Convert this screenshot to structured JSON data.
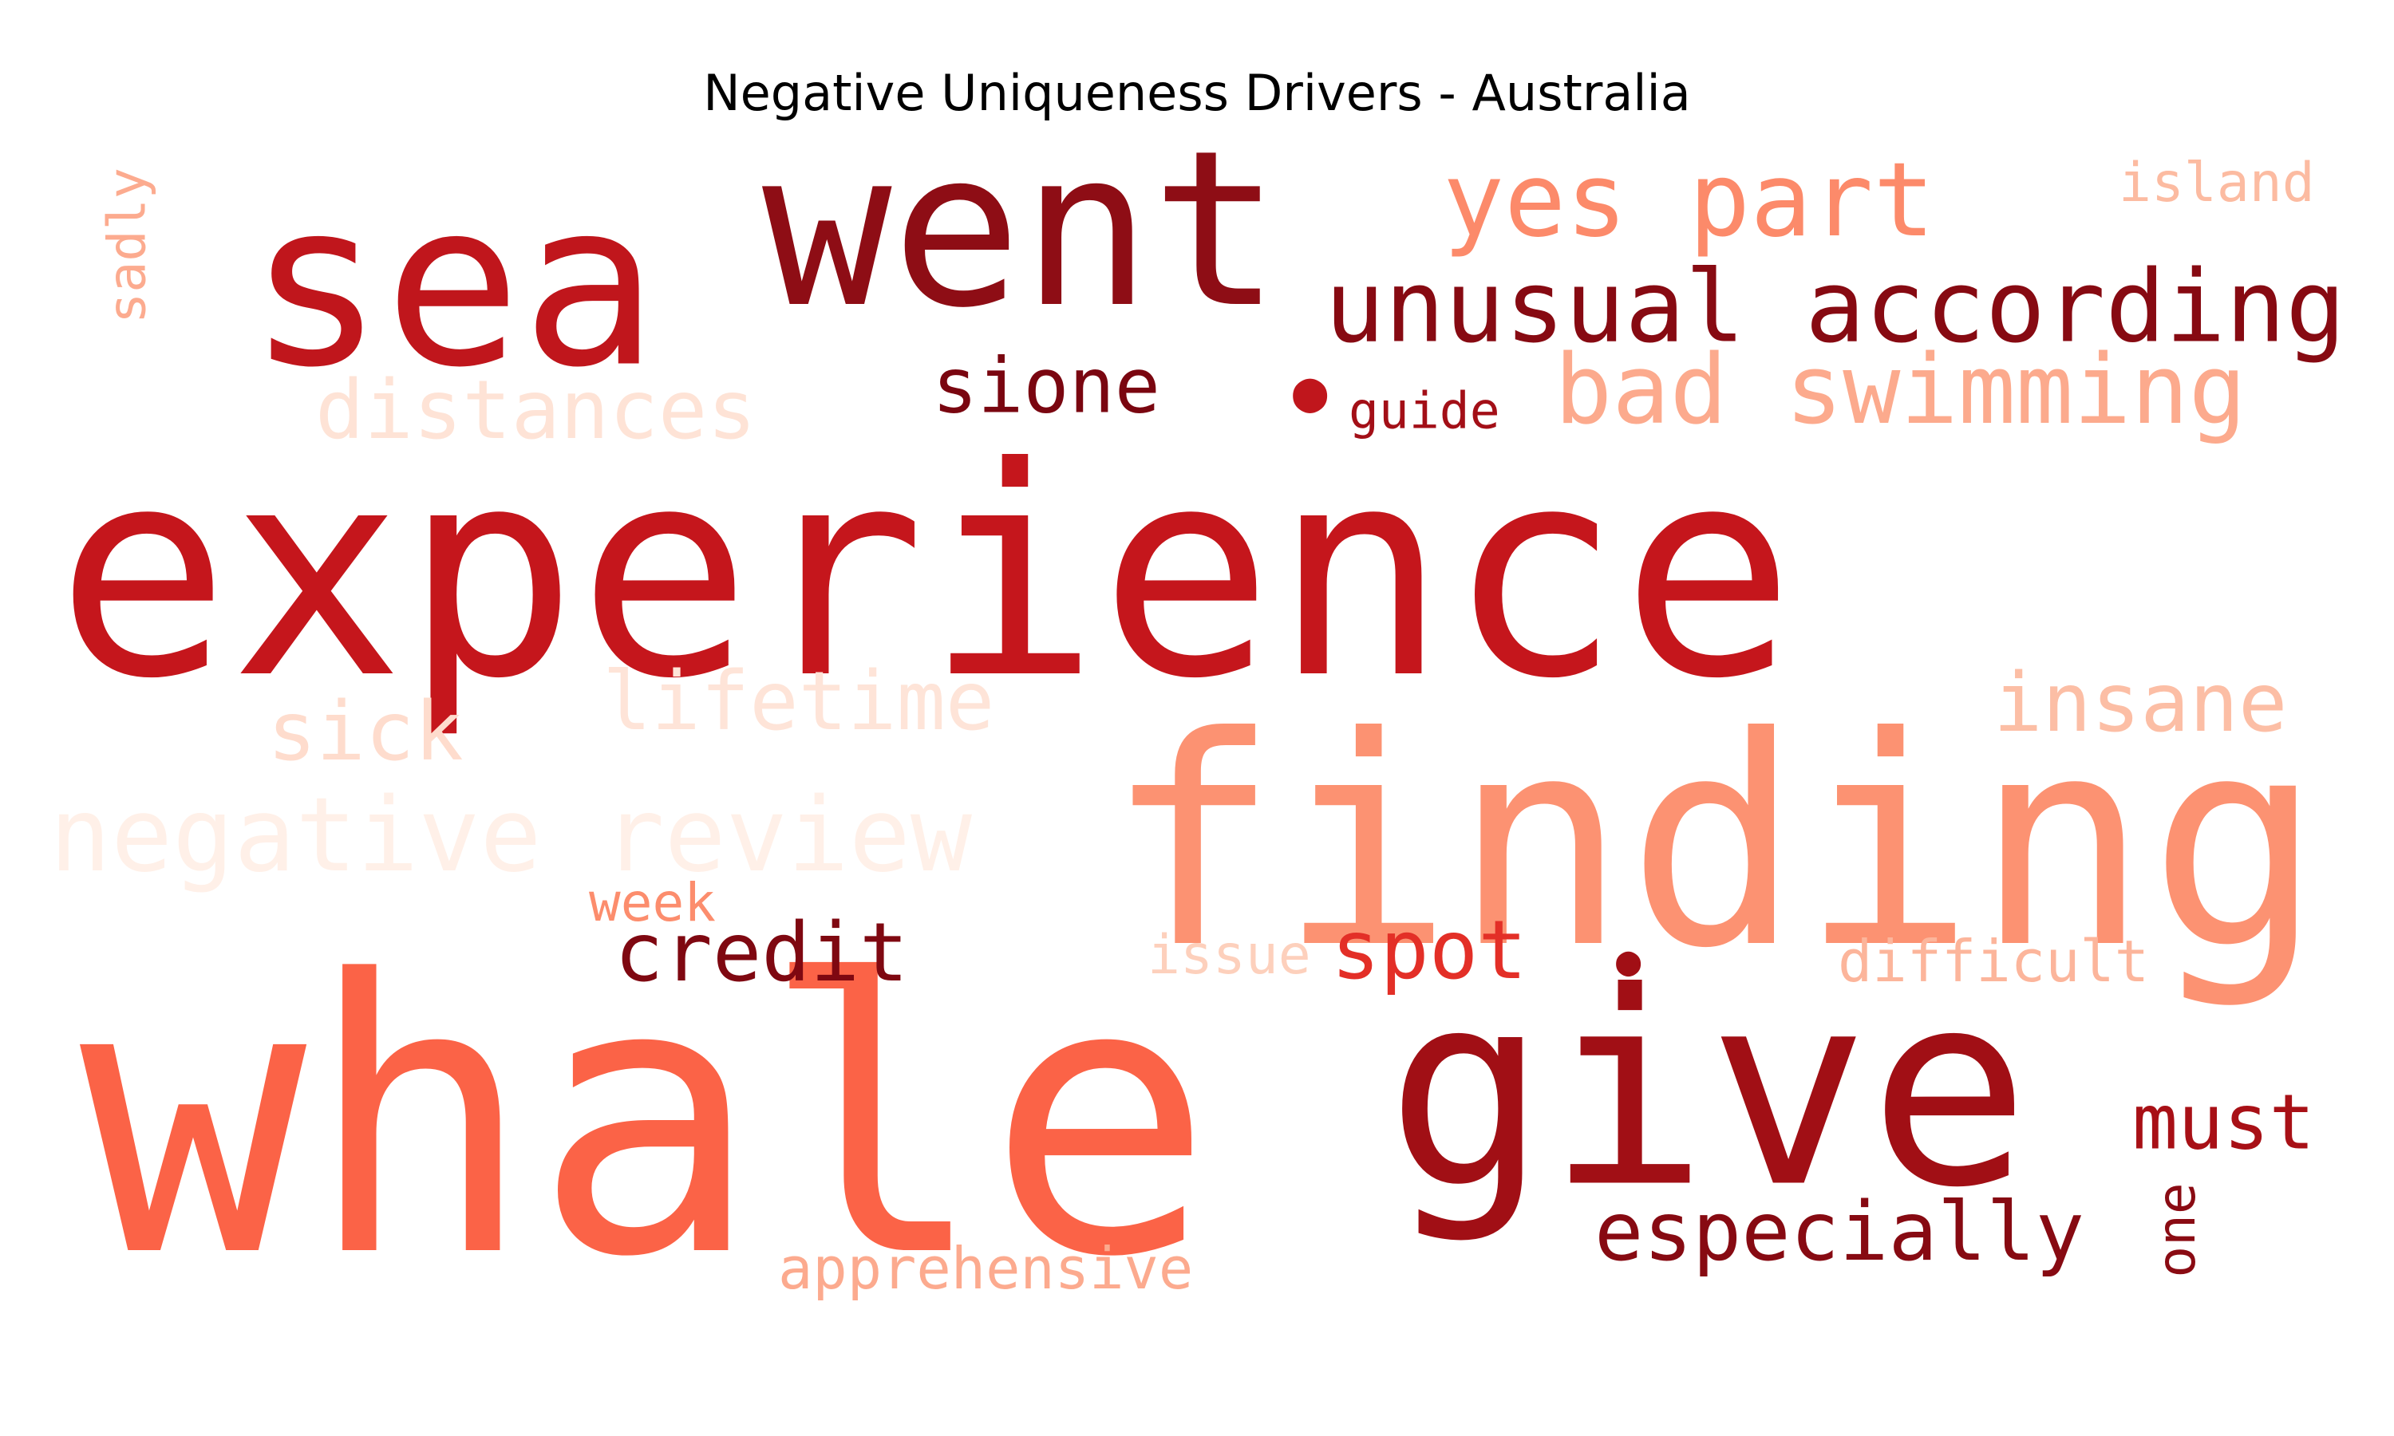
{
  "title": "Negative Uniqueness Drivers - Australia",
  "words": [
    {
      "text": "experience",
      "color": "#c5161c"
    },
    {
      "text": "whale",
      "color": "#fb6347"
    },
    {
      "text": "finding",
      "color": "#fc9272"
    },
    {
      "text": "give",
      "color": "#a10f15"
    },
    {
      "text": "sea",
      "color": "#c0161c"
    },
    {
      "text": "went",
      "color": "#8e0d15"
    },
    {
      "text": "yes part",
      "color": "#fc8a6a"
    },
    {
      "text": "unusual according",
      "color": "#870a12"
    },
    {
      "text": "bad swimming",
      "color": "#fcaa8d"
    },
    {
      "text": "sione",
      "color": "#7a0610"
    },
    {
      "text": "distances",
      "color": "#fee3d6"
    },
    {
      "text": "guide",
      "color": "#a30f17"
    },
    {
      "text": "island",
      "color": "#fcbba1"
    },
    {
      "text": "sadly",
      "color": "#fcab8f"
    },
    {
      "text": "lifetime",
      "color": "#fee4d8"
    },
    {
      "text": "sick",
      "color": "#fedccd"
    },
    {
      "text": "insane",
      "color": "#fcbea5"
    },
    {
      "text": "negative review",
      "color": "#fff0e8"
    },
    {
      "text": "week",
      "color": "#fc8d6d"
    },
    {
      "text": "credit",
      "color": "#7f0811"
    },
    {
      "text": "issue",
      "color": "#fdd0bc"
    },
    {
      "text": "spot",
      "color": "#e32f27"
    },
    {
      "text": "difficult",
      "color": "#fcb59b"
    },
    {
      "text": "must",
      "color": "#a81016"
    },
    {
      "text": "especially",
      "color": "#870a12"
    },
    {
      "text": "one",
      "color": "#8a0b13"
    },
    {
      "text": "apprehensive",
      "color": "#fcaa8e"
    },
    {
      "text": "●",
      "color": "#c0161c"
    },
    {
      "text": "●",
      "color": "#a10f15"
    }
  ]
}
